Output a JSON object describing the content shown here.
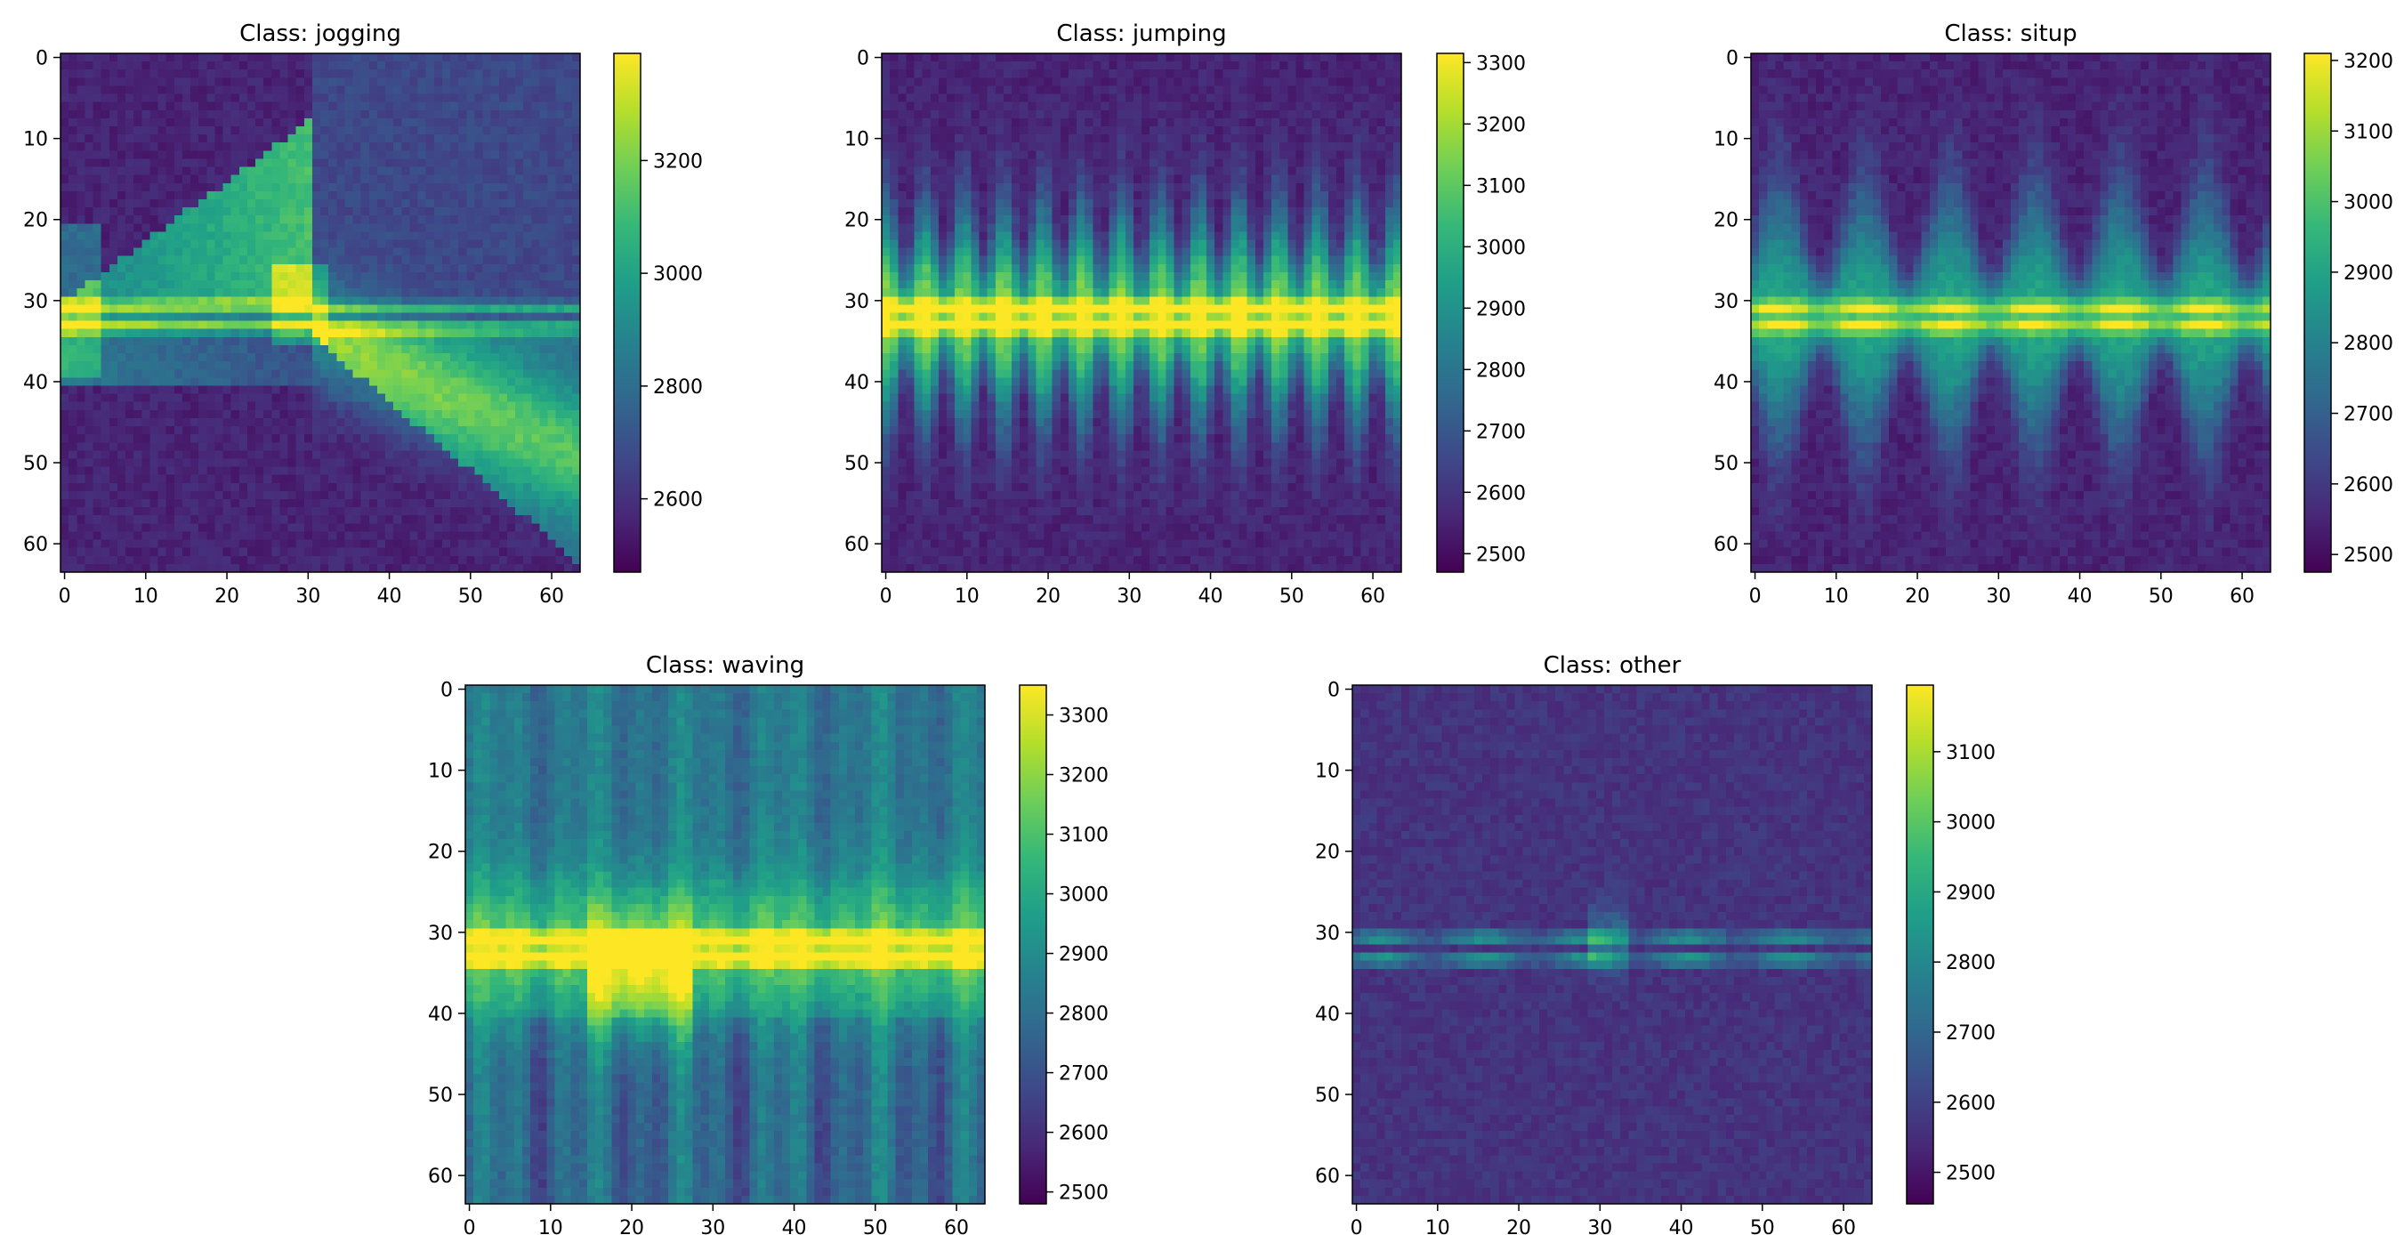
{
  "chart_data": [
    {
      "type": "heatmap",
      "title": "Class: jogging",
      "pattern": "jogging",
      "grid": false,
      "xlim": [
        -0.5,
        63.5
      ],
      "ylim": [
        63.5,
        -0.5
      ],
      "xticks": [
        "0",
        "10",
        "20",
        "30",
        "40",
        "50",
        "60"
      ],
      "yticks": [
        "0",
        "10",
        "20",
        "30",
        "40",
        "50",
        "60"
      ],
      "colorbar": {
        "min": 2470,
        "max": 3390,
        "ticks": [
          2600,
          2800,
          3000,
          3200
        ]
      }
    },
    {
      "type": "heatmap",
      "title": "Class: jumping",
      "pattern": "jumping",
      "grid": false,
      "xlim": [
        -0.5,
        63.5
      ],
      "ylim": [
        63.5,
        -0.5
      ],
      "xticks": [
        "0",
        "10",
        "20",
        "30",
        "40",
        "50",
        "60"
      ],
      "yticks": [
        "0",
        "10",
        "20",
        "30",
        "40",
        "50",
        "60"
      ],
      "colorbar": {
        "min": 2470,
        "max": 3315,
        "ticks": [
          2500,
          2600,
          2700,
          2800,
          2900,
          3000,
          3100,
          3200,
          3300
        ]
      }
    },
    {
      "type": "heatmap",
      "title": "Class: situp",
      "pattern": "situp",
      "grid": false,
      "xlim": [
        -0.5,
        63.5
      ],
      "ylim": [
        63.5,
        -0.5
      ],
      "xticks": [
        "0",
        "10",
        "20",
        "30",
        "40",
        "50",
        "60"
      ],
      "yticks": [
        "0",
        "10",
        "20",
        "30",
        "40",
        "50",
        "60"
      ],
      "colorbar": {
        "min": 2475,
        "max": 3210,
        "ticks": [
          2500,
          2600,
          2700,
          2800,
          2900,
          3000,
          3100,
          3200
        ]
      }
    },
    {
      "type": "heatmap",
      "title": "Class: waving",
      "pattern": "waving",
      "grid": false,
      "xlim": [
        -0.5,
        63.5
      ],
      "ylim": [
        63.5,
        -0.5
      ],
      "xticks": [
        "0",
        "10",
        "20",
        "30",
        "40",
        "50",
        "60"
      ],
      "yticks": [
        "0",
        "10",
        "20",
        "30",
        "40",
        "50",
        "60"
      ],
      "colorbar": {
        "min": 2480,
        "max": 3350,
        "ticks": [
          2500,
          2600,
          2700,
          2800,
          2900,
          3000,
          3100,
          3200,
          3300
        ]
      }
    },
    {
      "type": "heatmap",
      "title": "Class: other",
      "pattern": "other",
      "grid": false,
      "xlim": [
        -0.5,
        63.5
      ],
      "ylim": [
        63.5,
        -0.5
      ],
      "xticks": [
        "0",
        "10",
        "20",
        "30",
        "40",
        "50",
        "60"
      ],
      "yticks": [
        "0",
        "10",
        "20",
        "30",
        "40",
        "50",
        "60"
      ],
      "colorbar": {
        "min": 2455,
        "max": 3195,
        "ticks": [
          2500,
          2600,
          2700,
          2800,
          2900,
          3000,
          3100
        ]
      }
    }
  ],
  "colormap": {
    "name": "viridis",
    "stops": [
      "#440154",
      "#482878",
      "#3e4989",
      "#31688e",
      "#26828e",
      "#1f9e89",
      "#35b779",
      "#6ece58",
      "#b5de2b",
      "#fde725"
    ]
  }
}
